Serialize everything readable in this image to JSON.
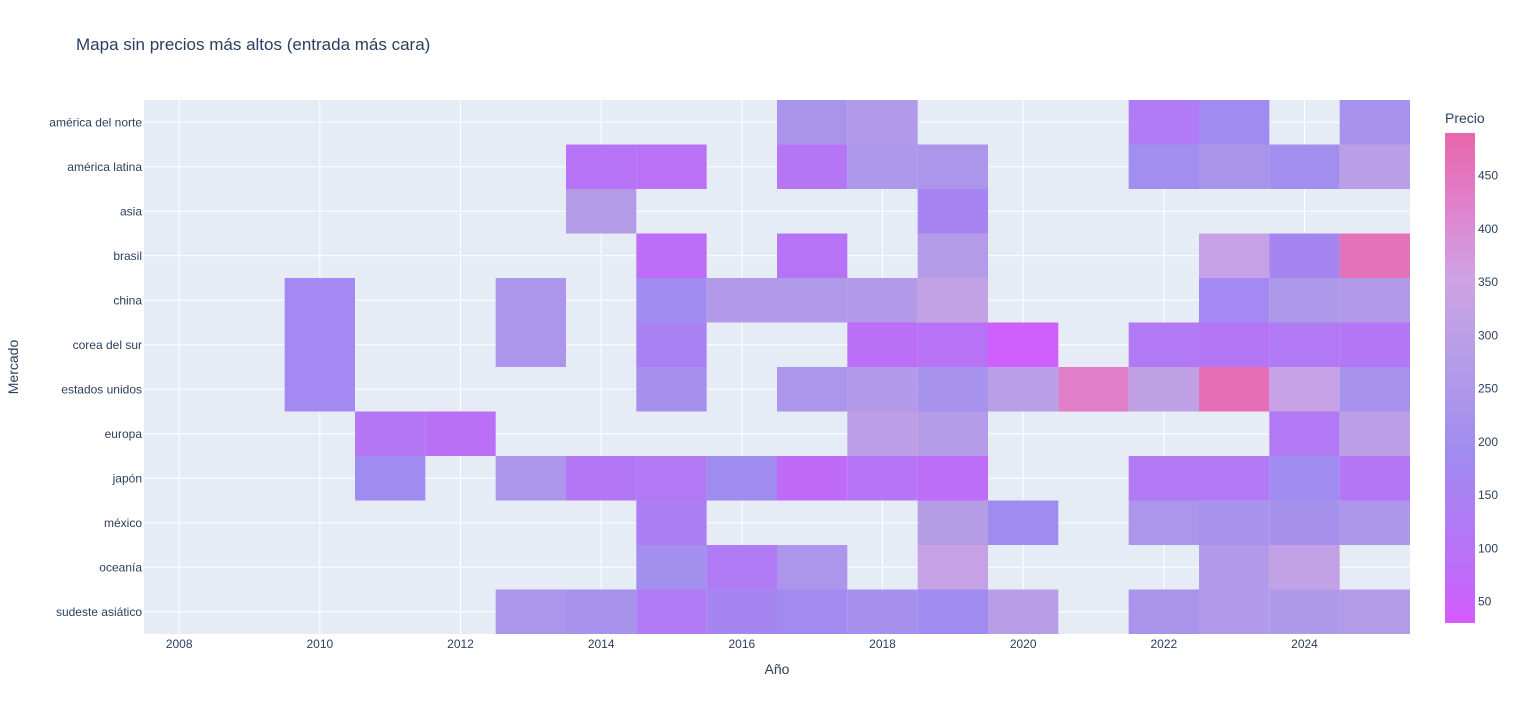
{
  "chart_data": {
    "type": "heatmap",
    "title": "Mapa sin precios más altos (entrada más cara)",
    "xlabel": "Año",
    "ylabel": "Mercado",
    "colorbar_title": "Precio",
    "x_ticks": [
      2008,
      2010,
      2012,
      2014,
      2016,
      2018,
      2020,
      2022,
      2024
    ],
    "xlim": [
      2007.5,
      2025.5
    ],
    "zlim": [
      30,
      490
    ],
    "colorbar_ticks": [
      50,
      100,
      150,
      200,
      250,
      300,
      350,
      400,
      450
    ],
    "colorscale": [
      [
        0.0,
        "#d75bff"
      ],
      [
        0.12,
        "#bb6ff7"
      ],
      [
        0.35,
        "#a08cf0"
      ],
      [
        0.55,
        "#b69ee6"
      ],
      [
        0.7,
        "#cfa3e4"
      ],
      [
        0.85,
        "#df82cc"
      ],
      [
        1.0,
        "#e866aa"
      ]
    ],
    "grid": true,
    "markets": [
      "américa del norte",
      "américa latina",
      "asia",
      "brasil",
      "china",
      "corea del sur",
      "estados unidos",
      "europa",
      "japón",
      "méxico",
      "oceanía",
      "sudeste asiático"
    ],
    "cells": [
      {
        "market": "américa del norte",
        "year": 2017,
        "value": 230
      },
      {
        "market": "américa del norte",
        "year": 2018,
        "value": 260
      },
      {
        "market": "américa del norte",
        "year": 2022,
        "value": 130
      },
      {
        "market": "américa del norte",
        "year": 2023,
        "value": 190
      },
      {
        "market": "américa del norte",
        "year": 2025,
        "value": 220
      },
      {
        "market": "américa latina",
        "year": 2014,
        "value": 100
      },
      {
        "market": "américa latina",
        "year": 2015,
        "value": 90
      },
      {
        "market": "américa latina",
        "year": 2017,
        "value": 110
      },
      {
        "market": "américa latina",
        "year": 2018,
        "value": 250
      },
      {
        "market": "américa latina",
        "year": 2019,
        "value": 240
      },
      {
        "market": "américa latina",
        "year": 2022,
        "value": 200
      },
      {
        "market": "américa latina",
        "year": 2023,
        "value": 230
      },
      {
        "market": "américa latina",
        "year": 2024,
        "value": 200
      },
      {
        "market": "américa latina",
        "year": 2025,
        "value": 290
      },
      {
        "market": "asia",
        "year": 2014,
        "value": 270
      },
      {
        "market": "asia",
        "year": 2019,
        "value": 160
      },
      {
        "market": "brasil",
        "year": 2015,
        "value": 80
      },
      {
        "market": "brasil",
        "year": 2017,
        "value": 100
      },
      {
        "market": "brasil",
        "year": 2019,
        "value": 270
      },
      {
        "market": "brasil",
        "year": 2023,
        "value": 330
      },
      {
        "market": "brasil",
        "year": 2024,
        "value": 170
      },
      {
        "market": "brasil",
        "year": 2025,
        "value": 460
      },
      {
        "market": "china",
        "year": 2010,
        "value": 180
      },
      {
        "market": "china",
        "year": 2013,
        "value": 240
      },
      {
        "market": "china",
        "year": 2015,
        "value": 195
      },
      {
        "market": "china",
        "year": 2016,
        "value": 265
      },
      {
        "market": "china",
        "year": 2017,
        "value": 260
      },
      {
        "market": "china",
        "year": 2018,
        "value": 265
      },
      {
        "market": "china",
        "year": 2019,
        "value": 320
      },
      {
        "market": "china",
        "year": 2023,
        "value": 180
      },
      {
        "market": "china",
        "year": 2024,
        "value": 250
      },
      {
        "market": "china",
        "year": 2025,
        "value": 265
      },
      {
        "market": "corea del sur",
        "year": 2010,
        "value": 180
      },
      {
        "market": "corea del sur",
        "year": 2013,
        "value": 240
      },
      {
        "market": "corea del sur",
        "year": 2015,
        "value": 150
      },
      {
        "market": "corea del sur",
        "year": 2018,
        "value": 85
      },
      {
        "market": "corea del sur",
        "year": 2019,
        "value": 95
      },
      {
        "market": "corea del sur",
        "year": 2020,
        "value": 45
      },
      {
        "market": "corea del sur",
        "year": 2022,
        "value": 120
      },
      {
        "market": "corea del sur",
        "year": 2023,
        "value": 110
      },
      {
        "market": "corea del sur",
        "year": 2024,
        "value": 120
      },
      {
        "market": "corea del sur",
        "year": 2025,
        "value": 115
      },
      {
        "market": "estados unidos",
        "year": 2010,
        "value": 180
      },
      {
        "market": "estados unidos",
        "year": 2015,
        "value": 210
      },
      {
        "market": "estados unidos",
        "year": 2017,
        "value": 240
      },
      {
        "market": "estados unidos",
        "year": 2018,
        "value": 265
      },
      {
        "market": "estados unidos",
        "year": 2019,
        "value": 220
      },
      {
        "market": "estados unidos",
        "year": 2020,
        "value": 290
      },
      {
        "market": "estados unidos",
        "year": 2021,
        "value": 430
      },
      {
        "market": "estados unidos",
        "year": 2022,
        "value": 310
      },
      {
        "market": "estados unidos",
        "year": 2023,
        "value": 470
      },
      {
        "market": "estados unidos",
        "year": 2024,
        "value": 330
      },
      {
        "market": "estados unidos",
        "year": 2025,
        "value": 220
      },
      {
        "market": "europa",
        "year": 2011,
        "value": 110
      },
      {
        "market": "europa",
        "year": 2012,
        "value": 85
      },
      {
        "market": "europa",
        "year": 2018,
        "value": 300
      },
      {
        "market": "europa",
        "year": 2019,
        "value": 270
      },
      {
        "market": "europa",
        "year": 2024,
        "value": 120
      },
      {
        "market": "europa",
        "year": 2025,
        "value": 300
      },
      {
        "market": "japón",
        "year": 2011,
        "value": 190
      },
      {
        "market": "japón",
        "year": 2013,
        "value": 240
      },
      {
        "market": "japón",
        "year": 2014,
        "value": 115
      },
      {
        "market": "japón",
        "year": 2015,
        "value": 125
      },
      {
        "market": "japón",
        "year": 2016,
        "value": 190
      },
      {
        "market": "japón",
        "year": 2017,
        "value": 75
      },
      {
        "market": "japón",
        "year": 2018,
        "value": 105
      },
      {
        "market": "japón",
        "year": 2019,
        "value": 80
      },
      {
        "market": "japón",
        "year": 2022,
        "value": 125
      },
      {
        "market": "japón",
        "year": 2023,
        "value": 120
      },
      {
        "market": "japón",
        "year": 2024,
        "value": 190
      },
      {
        "market": "japón",
        "year": 2025,
        "value": 110
      },
      {
        "market": "méxico",
        "year": 2015,
        "value": 140
      },
      {
        "market": "méxico",
        "year": 2019,
        "value": 280
      },
      {
        "market": "méxico",
        "year": 2020,
        "value": 190
      },
      {
        "market": "méxico",
        "year": 2022,
        "value": 240
      },
      {
        "market": "méxico",
        "year": 2023,
        "value": 220
      },
      {
        "market": "méxico",
        "year": 2024,
        "value": 215
      },
      {
        "market": "méxico",
        "year": 2025,
        "value": 245
      },
      {
        "market": "oceanía",
        "year": 2015,
        "value": 205
      },
      {
        "market": "oceanía",
        "year": 2016,
        "value": 130
      },
      {
        "market": "oceanía",
        "year": 2017,
        "value": 240
      },
      {
        "market": "oceanía",
        "year": 2019,
        "value": 330
      },
      {
        "market": "oceanía",
        "year": 2023,
        "value": 260
      },
      {
        "market": "oceanía",
        "year": 2024,
        "value": 320
      },
      {
        "market": "sudeste asiático",
        "year": 2013,
        "value": 240
      },
      {
        "market": "sudeste asiático",
        "year": 2014,
        "value": 225
      },
      {
        "market": "sudeste asiático",
        "year": 2015,
        "value": 130
      },
      {
        "market": "sudeste asiático",
        "year": 2016,
        "value": 170
      },
      {
        "market": "sudeste asiático",
        "year": 2017,
        "value": 185
      },
      {
        "market": "sudeste asiático",
        "year": 2018,
        "value": 210
      },
      {
        "market": "sudeste asiático",
        "year": 2019,
        "value": 190
      },
      {
        "market": "sudeste asiático",
        "year": 2020,
        "value": 285
      },
      {
        "market": "sudeste asiático",
        "year": 2022,
        "value": 230
      },
      {
        "market": "sudeste asiático",
        "year": 2023,
        "value": 260
      },
      {
        "market": "sudeste asiático",
        "year": 2024,
        "value": 255
      },
      {
        "market": "sudeste asiático",
        "year": 2025,
        "value": 270
      }
    ]
  }
}
